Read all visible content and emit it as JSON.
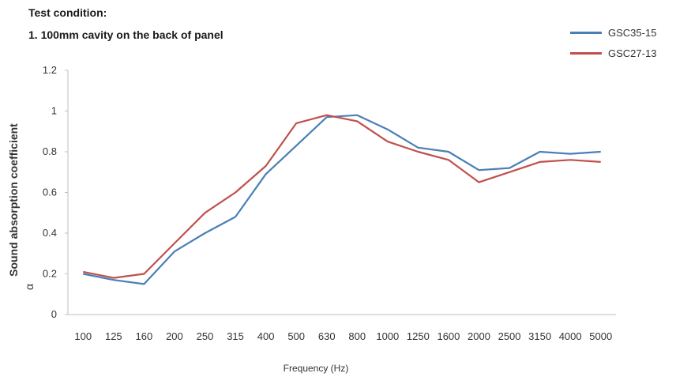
{
  "header": {
    "line1": "Test condition:",
    "line2": "1. 100mm cavity on the back of panel"
  },
  "chart_data": {
    "type": "line",
    "title": "",
    "xlabel": "Frequency  (Hz)",
    "ylabel": "Sound absorption coefficient",
    "ylabel_sub": "α",
    "categories": [
      "100",
      "125",
      "160",
      "200",
      "250",
      "315",
      "400",
      "500",
      "630",
      "800",
      "1000",
      "1250",
      "1600",
      "2000",
      "2500",
      "3150",
      "4000",
      "5000"
    ],
    "ylim": [
      0,
      1.2
    ],
    "yticks": [
      "0",
      "0.2",
      "0.4",
      "0.6",
      "0.8",
      "1",
      "1.2"
    ],
    "grid": false,
    "legend_position": "top-right",
    "series": [
      {
        "name": "GSC35-15",
        "color": "#4a7fb5",
        "values": [
          0.2,
          0.17,
          0.15,
          0.31,
          0.4,
          0.48,
          0.69,
          0.83,
          0.97,
          0.98,
          0.91,
          0.82,
          0.8,
          0.71,
          0.72,
          0.8,
          0.79,
          0.8
        ]
      },
      {
        "name": "GSC27-13",
        "color": "#c0504d",
        "values": [
          0.21,
          0.18,
          0.2,
          0.35,
          0.5,
          0.6,
          0.73,
          0.94,
          0.98,
          0.95,
          0.85,
          0.8,
          0.76,
          0.65,
          0.7,
          0.75,
          0.76,
          0.75
        ]
      }
    ]
  }
}
